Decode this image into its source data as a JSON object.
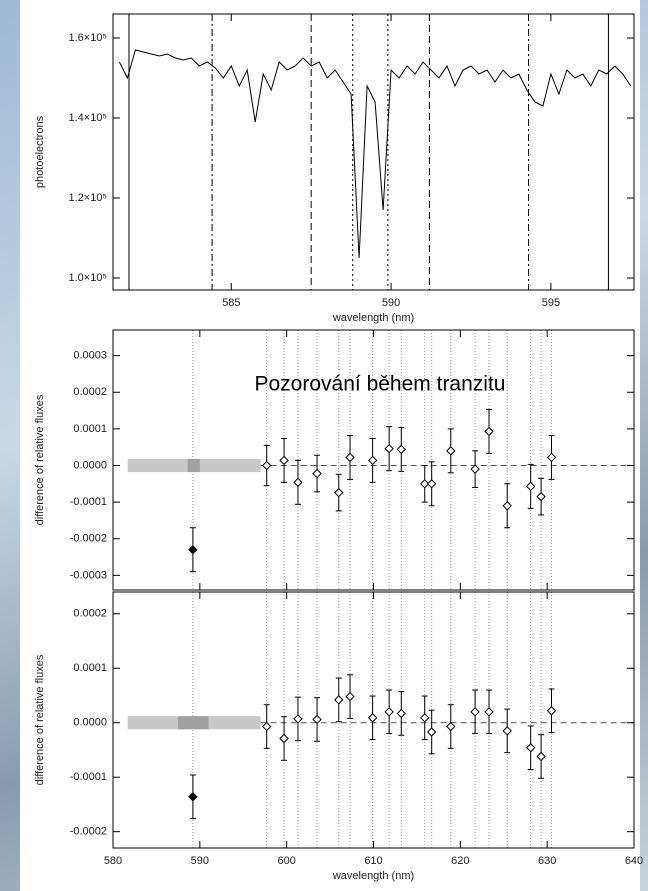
{
  "chart_data": [
    {
      "type": "line",
      "y_label": "photoelectrons",
      "x_label": "wavelength (nm)",
      "color": "#000000",
      "x": [
        581.5,
        581.75,
        582,
        582.25,
        582.5,
        582.75,
        583,
        583.25,
        583.5,
        583.75,
        584,
        584.25,
        584.5,
        584.75,
        585,
        585.25,
        585.5,
        585.75,
        586,
        586.25,
        586.5,
        586.75,
        587,
        587.25,
        587.5,
        587.75,
        588,
        588.25,
        588.5,
        588.75,
        589,
        589.25,
        589.5,
        589.75,
        590,
        590.25,
        590.5,
        590.75,
        591,
        591.25,
        591.5,
        591.75,
        592,
        592.25,
        592.5,
        592.75,
        593,
        593.25,
        593.5,
        593.75,
        594,
        594.25,
        594.5,
        594.75,
        595,
        595.25,
        595.5,
        595.75,
        596,
        596.25,
        596.5,
        596.75,
        597,
        597.25,
        597.5
      ],
      "values": [
        154000,
        150000,
        157000,
        156500,
        156000,
        155500,
        156000,
        155000,
        154500,
        155000,
        153000,
        154000,
        152500,
        150000,
        153000,
        148000,
        152000,
        139000,
        151000,
        147000,
        154000,
        152000,
        153000,
        155000,
        153000,
        154000,
        150000,
        152000,
        149000,
        146000,
        105000,
        148000,
        144000,
        117000,
        152000,
        150000,
        153000,
        151000,
        154000,
        152000,
        150000,
        153000,
        148000,
        152000,
        153000,
        151000,
        152000,
        149000,
        152000,
        150000,
        151000,
        147000,
        144000,
        143000,
        151000,
        146000,
        152000,
        150000,
        151000,
        148000,
        152000,
        151000,
        153000,
        151000,
        148000
      ],
      "vlines": [
        {
          "x": 581.8,
          "style": "solid"
        },
        {
          "x": 584.4,
          "style": "dashdot"
        },
        {
          "x": 587.5,
          "style": "dashed"
        },
        {
          "x": 588.8,
          "style": "dotted"
        },
        {
          "x": 589.9,
          "style": "dotted"
        },
        {
          "x": 591.2,
          "style": "dashed"
        },
        {
          "x": 594.3,
          "style": "dashdot"
        },
        {
          "x": 596.8,
          "style": "solid"
        }
      ],
      "xlim": [
        581.3,
        597.6
      ],
      "xticks": [
        585,
        590,
        595
      ],
      "show_xtick_labels": true,
      "ylim": [
        97000,
        166000
      ],
      "yticks": [
        {
          "value": 100000,
          "label": "1.0×10⁵"
        },
        {
          "value": 120000,
          "label": "1.2×10⁵"
        },
        {
          "value": 140000,
          "label": "1.4×10⁵"
        },
        {
          "value": 160000,
          "label": "1.6×10⁵"
        }
      ]
    },
    {
      "type": "errorbar",
      "y_label": "difference of relative fluxes",
      "annotation": "Pozorování během tranzitu",
      "x": [
        597.7,
        599.7,
        601.3,
        603.5,
        606.0,
        607.3,
        609.9,
        611.8,
        613.2,
        615.9,
        616.7,
        618.9,
        621.7,
        623.3,
        625.4,
        628.1,
        629.3,
        630.5
      ],
      "values": [
        0.0,
        1.4e-05,
        -4.6e-05,
        -2.2e-05,
        -7.4e-05,
        2.2e-05,
        1.4e-05,
        4.6e-05,
        4.4e-05,
        -5e-05,
        -5e-05,
        4e-05,
        -1e-05,
        9.3e-05,
        -0.00011,
        -5.7e-05,
        -8.5e-05,
        2.2e-05
      ],
      "errors": [
        5.5e-05,
        6e-05,
        6e-05,
        5e-05,
        5e-05,
        6e-05,
        6e-05,
        6e-05,
        6e-05,
        5e-05,
        6e-05,
        6e-05,
        5e-05,
        6e-05,
        6e-05,
        6e-05,
        5e-05,
        6e-05
      ],
      "filled_point": {
        "x": 589.2,
        "value": -0.00023,
        "error": 6e-05
      },
      "bands": [
        {
          "x0": 581.7,
          "x1": 597.0,
          "y0": -1.8e-05,
          "y1": 1.8e-05,
          "color": "#c8c8c8"
        },
        {
          "x0": 588.6,
          "x1": 590.0,
          "y0": -1.8e-05,
          "y1": 1.8e-05,
          "color": "#a0a0a0"
        }
      ],
      "xlim": [
        580,
        640
      ],
      "xticks": [
        580,
        590,
        600,
        610,
        620,
        630,
        640
      ],
      "show_xtick_labels": false,
      "ylim": [
        -0.00034,
        0.00037
      ],
      "yticks": [
        {
          "value": -0.0003,
          "label": "-0.0003"
        },
        {
          "value": -0.0002,
          "label": "-0.0002"
        },
        {
          "value": -0.0001,
          "label": "-0.0001"
        },
        {
          "value": 0,
          "label": "0.0000"
        },
        {
          "value": 0.0001,
          "label": "0.0001"
        },
        {
          "value": 0.0002,
          "label": "0.0002"
        },
        {
          "value": 0.0003,
          "label": "0.0003"
        }
      ]
    },
    {
      "type": "errorbar",
      "y_label": "difference of relative fluxes",
      "x_label": "wavelength (nm)",
      "x": [
        597.7,
        599.7,
        601.3,
        603.5,
        606.0,
        607.3,
        609.9,
        611.8,
        613.2,
        615.9,
        616.7,
        618.9,
        621.7,
        623.3,
        625.4,
        628.1,
        629.3,
        630.5
      ],
      "values": [
        -7e-06,
        -2.9e-05,
        7e-06,
        6e-06,
        4.2e-05,
        4.8e-05,
        9e-06,
        2e-05,
        1.7e-05,
        9e-06,
        -1.7e-05,
        -7e-06,
        2e-05,
        2e-05,
        -1.5e-05,
        -4.6e-05,
        -6.2e-05,
        2.2e-05
      ],
      "errors": [
        4e-05,
        4e-05,
        4e-05,
        4e-05,
        4e-05,
        4e-05,
        4e-05,
        4e-05,
        4e-05,
        4e-05,
        4e-05,
        4e-05,
        4e-05,
        4e-05,
        4e-05,
        4e-05,
        4e-05,
        4e-05
      ],
      "filled_point": {
        "x": 589.2,
        "value": -0.000136,
        "error": 4e-05
      },
      "bands": [
        {
          "x0": 581.7,
          "x1": 597.0,
          "y0": -1.2e-05,
          "y1": 1.2e-05,
          "color": "#c8c8c8"
        },
        {
          "x0": 587.5,
          "x1": 591.0,
          "y0": -1.2e-05,
          "y1": 1.2e-05,
          "color": "#a0a0a0"
        }
      ],
      "xlim": [
        580,
        640
      ],
      "xticks": [
        580,
        590,
        600,
        610,
        620,
        630,
        640
      ],
      "show_xtick_labels": true,
      "ylim": [
        -0.00023,
        0.00024
      ],
      "yticks": [
        {
          "value": -0.0002,
          "label": "-0.0002"
        },
        {
          "value": -0.0001,
          "label": "-0.0001"
        },
        {
          "value": 0,
          "label": "0.0000"
        },
        {
          "value": 0.0001,
          "label": "0.0001"
        },
        {
          "value": 0.0002,
          "label": "0.0002"
        }
      ]
    }
  ]
}
